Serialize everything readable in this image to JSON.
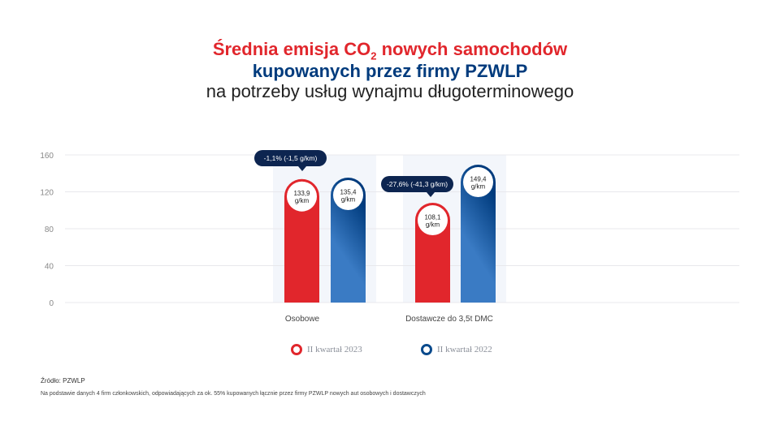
{
  "title": {
    "line1_pre": "Średnia emisja CO",
    "line1_sub": "2",
    "line1_post": " nowych samochodów",
    "line2": "kupowanych przez firmy PZWLP",
    "line3": "na potrzeby usług wynajmu długoterminowego"
  },
  "chart_data": {
    "type": "bar",
    "categories": [
      "Osobowe",
      "Dostawcze do 3,5t DMC"
    ],
    "series": [
      {
        "name": "II kwartał 2023",
        "color": "#e1262c",
        "values": [
          133.9,
          108.1
        ],
        "labels": [
          "133,9",
          "108,1"
        ]
      },
      {
        "name": "II kwartał 2022",
        "color": "#0a4a8c",
        "values": [
          135.4,
          149.4
        ],
        "labels": [
          "135,4",
          "149,4"
        ]
      }
    ],
    "unit": "g/km",
    "ylim": [
      0,
      160
    ],
    "yticks": [
      "0",
      "40",
      "80",
      "120",
      "160"
    ],
    "grid": true,
    "legend": "bottom",
    "annotations": [
      "-1,1% (-1,5 g/km)",
      "-27,6% (-41,3 g/km)"
    ]
  },
  "source": "Źródło: PZWLP",
  "note": "Na podstawie danych 4 firm członkowskich, odpowiadających za ok. 55% kupowanych łącznie przez firmy PZWLP nowych aut osobowych i dostawczych"
}
